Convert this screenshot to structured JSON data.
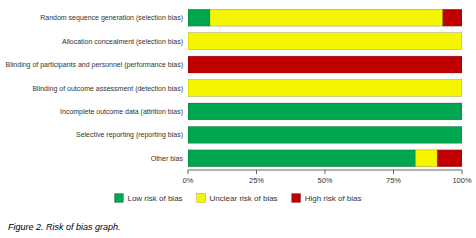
{
  "chart_data": {
    "type": "bar",
    "orientation": "horizontal",
    "stacked": true,
    "title": "Figure 2. Risk of bias graph.",
    "categories": [
      "Random sequence generation (selection bias)",
      "Allocation concealment (selection bias)",
      "Blinding of participants and personnel (performance bias)",
      "Blinding of outcome assessment (detection bias)",
      "Incomplete outcome data (attrition bias)",
      "Selective reporting (reporting bias)",
      "Other bias"
    ],
    "series": [
      {
        "name": "Low risk of bias",
        "color": "#00a550",
        "values": [
          8,
          0,
          0,
          0,
          100,
          100,
          83
        ]
      },
      {
        "name": "Unclear risk of bias",
        "color": "#f5f500",
        "values": [
          85,
          100,
          0,
          100,
          0,
          0,
          8
        ]
      },
      {
        "name": "High risk of bias",
        "color": "#c00000",
        "values": [
          7,
          0,
          100,
          0,
          0,
          0,
          9
        ]
      }
    ],
    "xlim": [
      0,
      100
    ],
    "xticks": [
      {
        "value": 0,
        "label": "0%"
      },
      {
        "value": 25,
        "label": "25%"
      },
      {
        "value": 50,
        "label": "50%"
      },
      {
        "value": 75,
        "label": "75%"
      },
      {
        "value": 100,
        "label": "100%"
      }
    ],
    "grid": false,
    "legend": "bottom"
  }
}
